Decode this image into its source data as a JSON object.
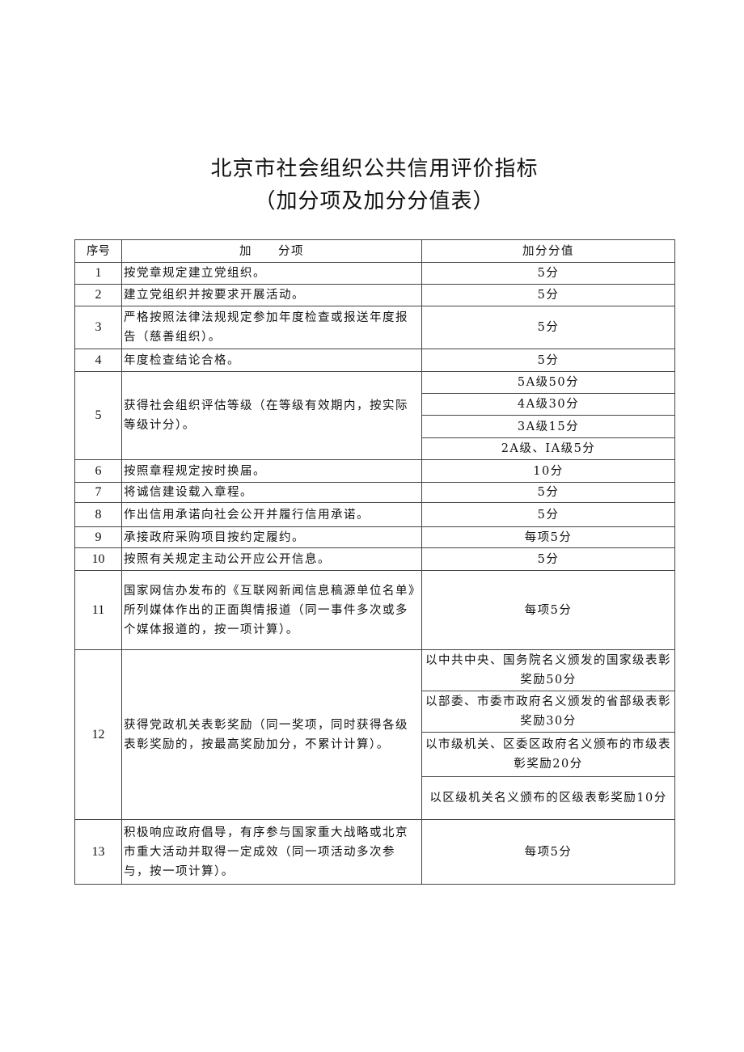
{
  "title": {
    "line1": "北京市社会组织公共信用评价指标",
    "line2": "（加分项及加分分值表）"
  },
  "table": {
    "headers": [
      "序号",
      "加　　分项",
      "加分分值"
    ],
    "rows": [
      {
        "no": "1",
        "item": "按党章规定建立党组织。",
        "values": [
          "5分"
        ]
      },
      {
        "no": "2",
        "item": "建立党组织并按要求开展活动。",
        "values": [
          "5分"
        ]
      },
      {
        "no": "3",
        "item": "严格按照法律法规规定参加年度检查或报送年度报告（慈善组织）。",
        "values": [
          "5分"
        ]
      },
      {
        "no": "4",
        "item": "年度检查结论合格。",
        "values": [
          "5分"
        ]
      },
      {
        "no": "5",
        "item": "获得社会组织评估等级（在等级有效期内，按实际等级计分）。",
        "values": [
          "5A级50分",
          "4A级30分",
          "3A级15分",
          "2A级、IA级5分"
        ]
      },
      {
        "no": "6",
        "item": "按照章程规定按时换届。",
        "values": [
          "10分"
        ]
      },
      {
        "no": "7",
        "item": "将诚信建设载入章程。",
        "values": [
          "5分"
        ]
      },
      {
        "no": "8",
        "item": "作出信用承诺向社会公开并履行信用承诺。",
        "values": [
          "5分"
        ]
      },
      {
        "no": "9",
        "item": "承接政府采购项目按约定履约。",
        "values": [
          "每项5分"
        ]
      },
      {
        "no": "10",
        "item": "按照有关规定主动公开应公开信息。",
        "values": [
          "5分"
        ]
      },
      {
        "no": "11",
        "item": "国家网信办发布的《互联网新闻信息稿源单位名单》所列媒体作出的正面舆情报道（同一事件多次或多个媒体报道的，按一项计算）。",
        "values": [
          "每项5分"
        ]
      },
      {
        "no": "12",
        "item": "获得党政机关表彰奖励（同一奖项，同时获得各级表彰奖励的，按最高奖励加分，不累计计算）。",
        "values": [
          "以中共中央、国务院名义颁发的国家级表彰奖励50分",
          "以部委、市委市政府名义颁发的省部级表彰奖励30分",
          "以市级机关、区委区政府名义颁布的市级表彰奖励20分",
          "以区级机关名义颁布的区级表彰奖励10分"
        ]
      },
      {
        "no": "13",
        "item": "积极响应政府倡导，有序参与国家重大战略或北京市重大活动并取得一定成效（同一项活动多次参与，按一项计算）。",
        "values": [
          "每项5分"
        ]
      }
    ]
  }
}
